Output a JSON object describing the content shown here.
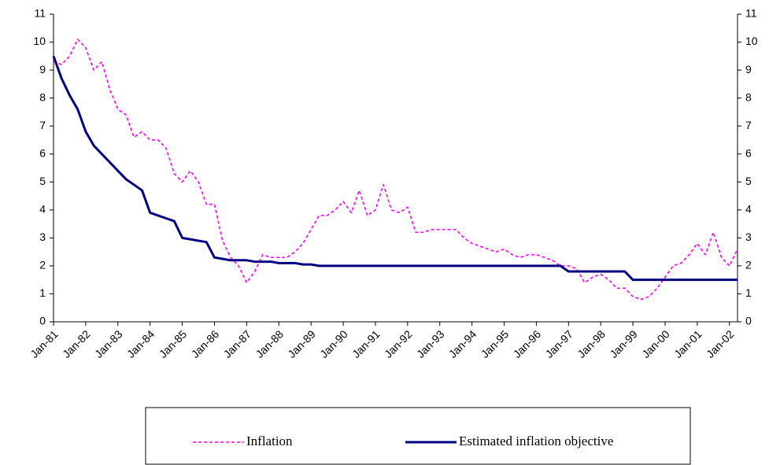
{
  "chart_data": {
    "type": "line",
    "categories": [
      "Jan-81",
      null,
      null,
      null,
      "Jan-82",
      null,
      null,
      null,
      "Jan-83",
      null,
      null,
      null,
      "Jan-84",
      null,
      null,
      null,
      "Jan-85",
      null,
      null,
      null,
      "Jan-86",
      null,
      null,
      null,
      "Jan-87",
      null,
      null,
      null,
      "Jan-88",
      null,
      null,
      null,
      "Jan-89",
      null,
      null,
      null,
      "Jan-90",
      null,
      null,
      null,
      "Jan-91",
      null,
      null,
      null,
      "Jan-92",
      null,
      null,
      null,
      "Jan-93",
      null,
      null,
      null,
      "Jan-94",
      null,
      null,
      null,
      "Jan-95",
      null,
      null,
      null,
      "Jan-96",
      null,
      null,
      null,
      "Jan-97",
      null,
      null,
      null,
      "Jan-98",
      null,
      null,
      null,
      "Jan-99",
      null,
      null,
      null,
      "Jan-00",
      null,
      null,
      null,
      "Jan-01",
      null,
      null,
      null,
      "Jan-02",
      null
    ],
    "series": [
      {
        "name": "Inflation",
        "color": "#ff00ff",
        "dashed": true,
        "values": [
          9.3,
          9.2,
          9.5,
          10.1,
          9.8,
          9.0,
          9.3,
          8.3,
          7.6,
          7.4,
          6.6,
          6.8,
          6.5,
          6.5,
          6.2,
          5.3,
          5.0,
          5.4,
          5.0,
          4.2,
          4.2,
          2.9,
          2.3,
          2.0,
          1.4,
          1.8,
          2.4,
          2.3,
          2.3,
          2.3,
          2.5,
          2.8,
          3.3,
          3.8,
          3.8,
          4.0,
          4.3,
          3.9,
          4.7,
          3.8,
          4.0,
          4.9,
          4.0,
          3.9,
          4.1,
          3.2,
          3.2,
          3.3,
          3.3,
          3.3,
          3.3,
          3.0,
          2.8,
          2.7,
          2.6,
          2.5,
          2.6,
          2.4,
          2.3,
          2.4,
          2.4,
          2.3,
          2.2,
          2.0,
          2.0,
          1.9,
          1.4,
          1.6,
          1.7,
          1.5,
          1.2,
          1.2,
          0.9,
          0.8,
          0.9,
          1.2,
          1.6,
          2.0,
          2.1,
          2.4,
          2.8,
          2.4,
          3.2,
          2.3,
          2.0,
          2.6
        ]
      },
      {
        "name": "Estimated inflation objective",
        "color": "#000080",
        "dashed": false,
        "values": [
          9.5,
          8.7,
          8.1,
          7.6,
          6.8,
          6.3,
          6.0,
          5.7,
          5.4,
          5.1,
          4.9,
          4.7,
          3.9,
          3.8,
          3.7,
          3.6,
          3.0,
          2.95,
          2.9,
          2.85,
          2.3,
          2.25,
          2.2,
          2.2,
          2.2,
          2.15,
          2.15,
          2.15,
          2.1,
          2.1,
          2.1,
          2.05,
          2.05,
          2.0,
          2.0,
          2.0,
          2.0,
          2.0,
          2.0,
          2.0,
          2.0,
          2.0,
          2.0,
          2.0,
          2.0,
          2.0,
          2.0,
          2.0,
          2.0,
          2.0,
          2.0,
          2.0,
          2.0,
          2.0,
          2.0,
          2.0,
          2.0,
          2.0,
          2.0,
          2.0,
          2.0,
          2.0,
          2.0,
          2.0,
          1.8,
          1.8,
          1.8,
          1.8,
          1.8,
          1.8,
          1.8,
          1.8,
          1.5,
          1.5,
          1.5,
          1.5,
          1.5,
          1.5,
          1.5,
          1.5,
          1.5,
          1.5,
          1.5,
          1.5,
          1.5,
          1.5
        ]
      }
    ],
    "ylim": [
      0,
      11
    ],
    "yticks": [
      0,
      1,
      2,
      3,
      4,
      5,
      6,
      7,
      8,
      9,
      10,
      11
    ],
    "y2lim": [
      0,
      11
    ],
    "y2ticks": [
      0,
      1,
      2,
      3,
      4,
      5,
      6,
      7,
      8,
      9,
      10,
      11
    ],
    "grid": false,
    "legend": "bottom"
  }
}
